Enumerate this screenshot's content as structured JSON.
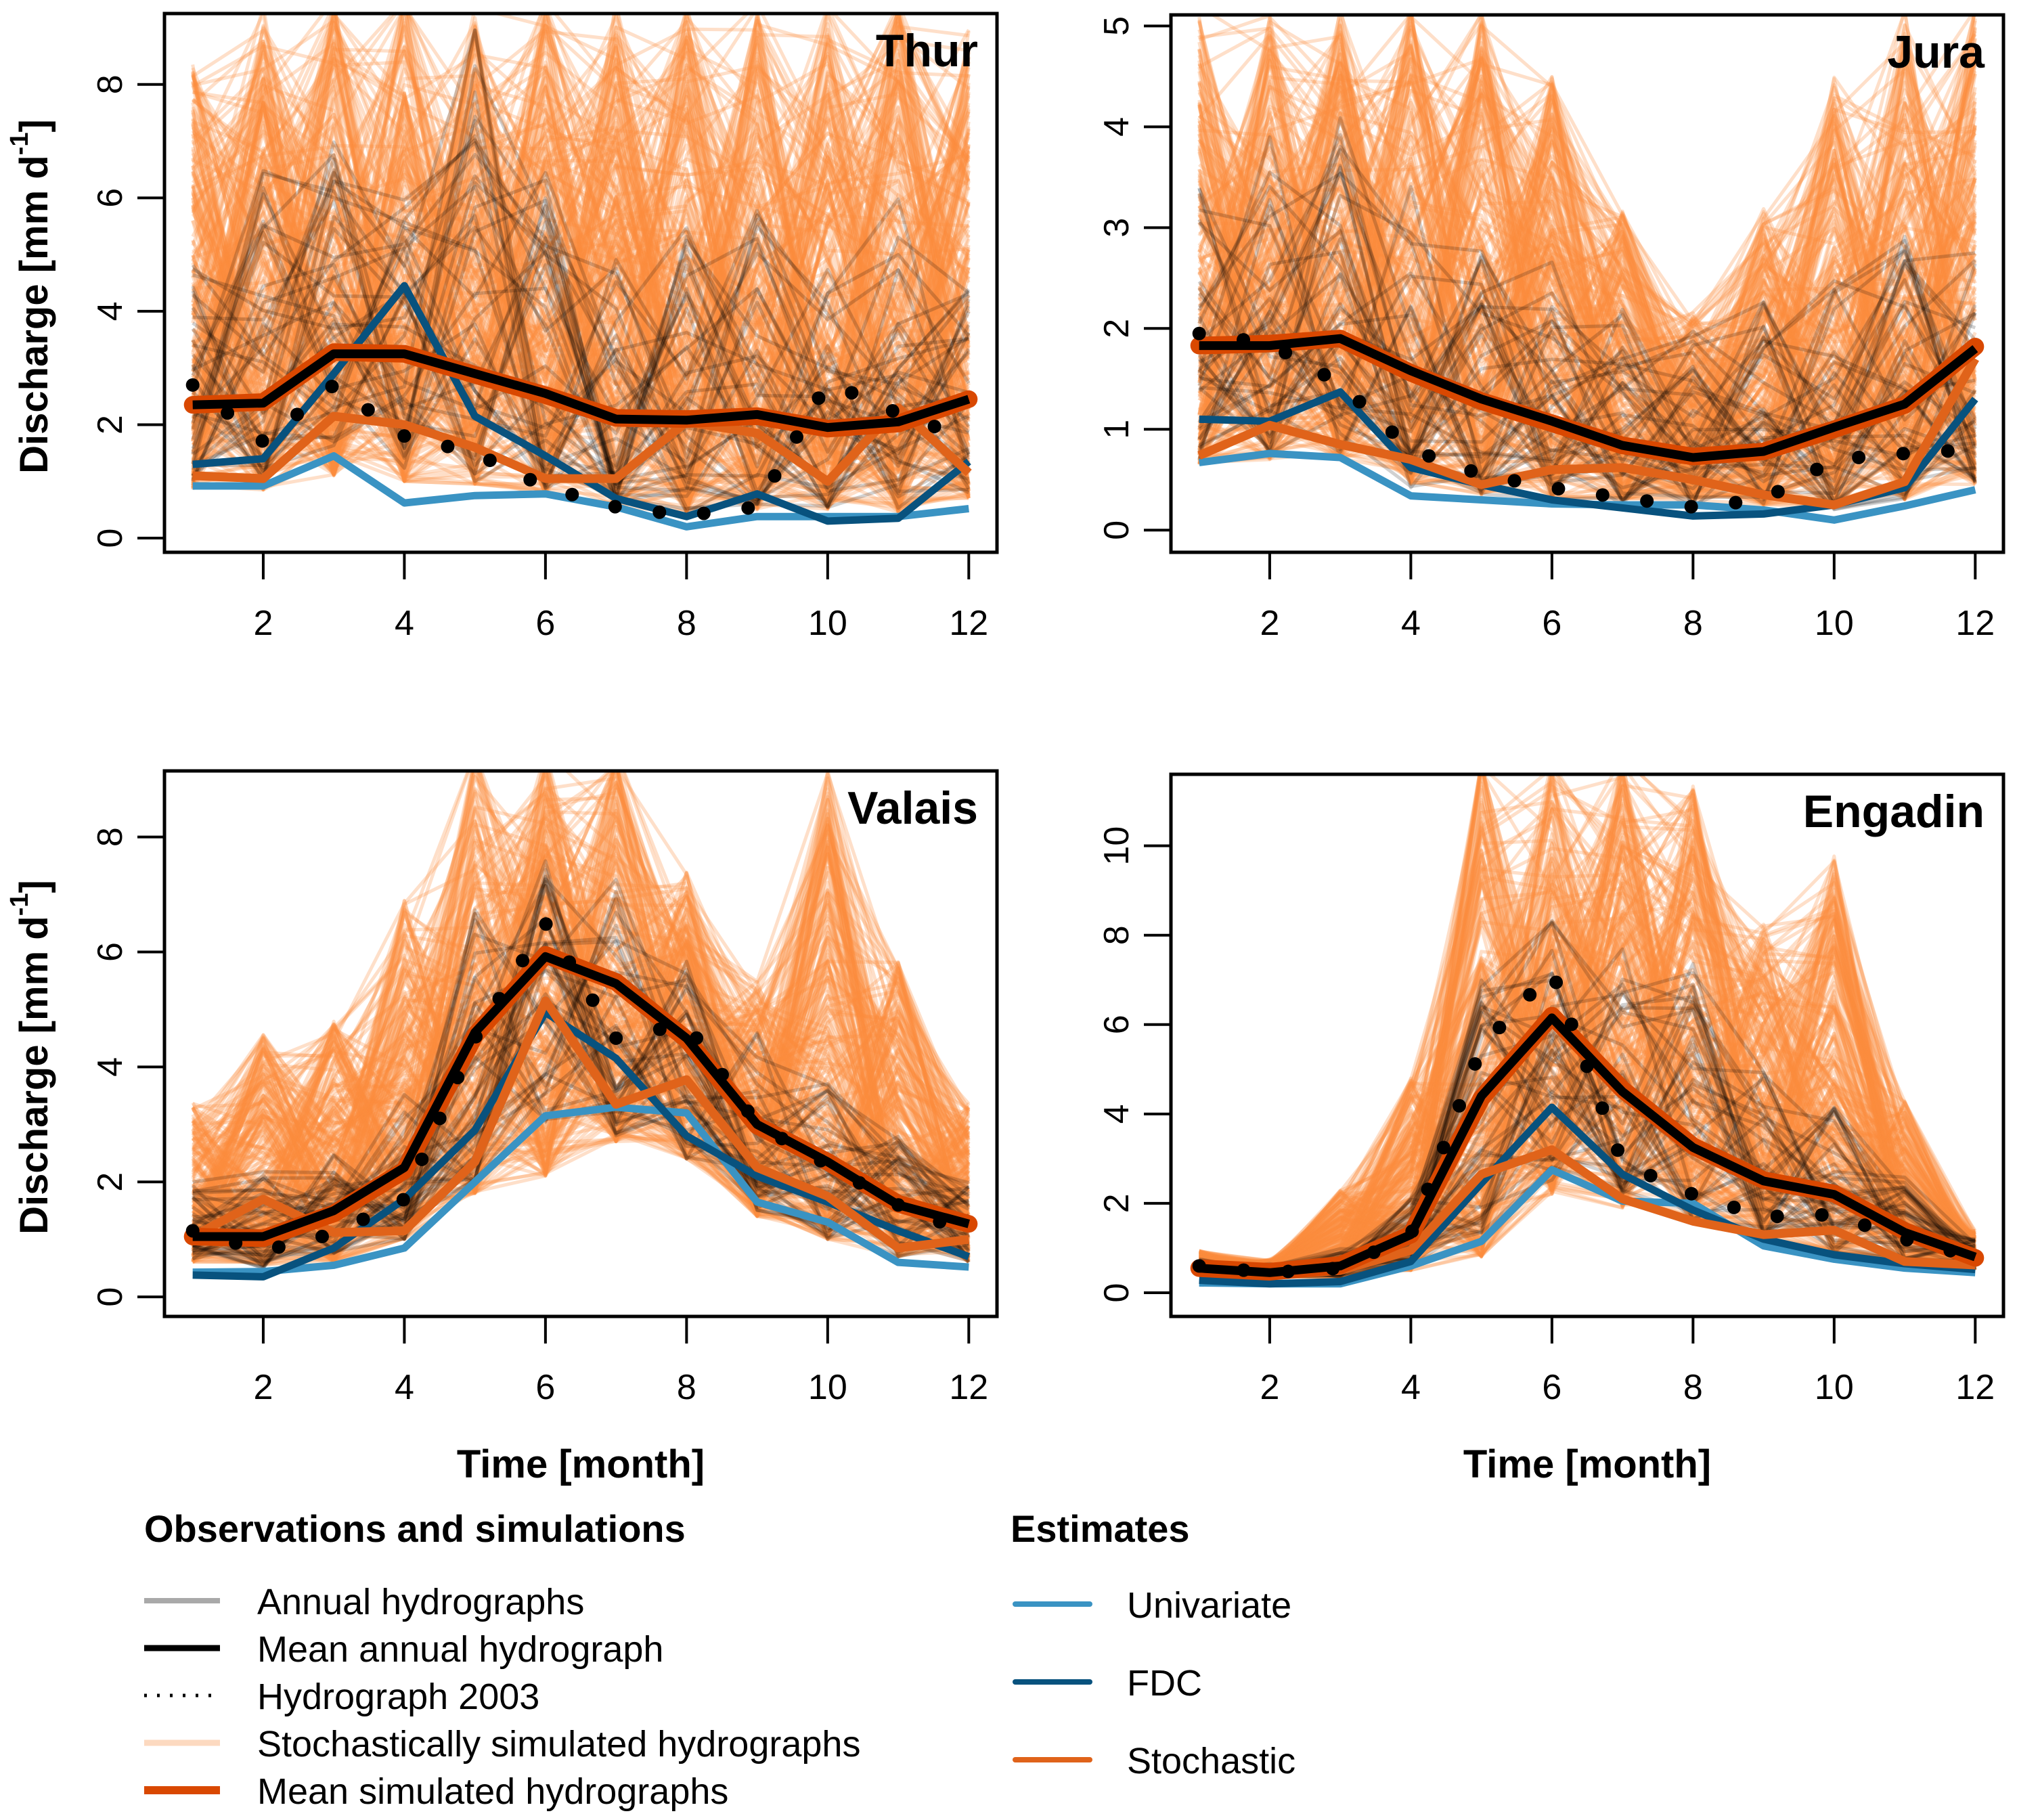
{
  "chart_data": [
    {
      "type": "line",
      "title": "Thur",
      "xlabel": "",
      "ylabel": "Discharge [mm d-1]",
      "x": [
        1,
        2,
        3,
        4,
        5,
        6,
        7,
        8,
        9,
        10,
        11,
        12
      ],
      "xlim": [
        0.6,
        12.4
      ],
      "ylim": [
        -0.25,
        9.25
      ],
      "xticks": [
        2,
        4,
        6,
        8,
        10,
        12
      ],
      "yticks": [
        0,
        2,
        4,
        6,
        8
      ],
      "grid": false,
      "ensemble": {
        "simulated_low": [
          0.85,
          0.85,
          1.1,
          1.0,
          0.95,
          0.75,
          0.55,
          0.45,
          0.5,
          0.5,
          0.45,
          0.7
        ],
        "simulated_high": [
          8.5,
          9.5,
          9.5,
          9.5,
          9.5,
          9.5,
          9.5,
          9.5,
          9.5,
          9.5,
          9.5,
          9.0
        ],
        "annual_low": [
          1.0,
          1.0,
          1.3,
          1.2,
          1.0,
          0.8,
          0.5,
          0.45,
          0.5,
          0.5,
          0.5,
          0.8
        ],
        "annual_high": [
          5.0,
          6.5,
          7.0,
          6.0,
          9.0,
          6.5,
          5.0,
          5.5,
          6.0,
          5.0,
          6.0,
          4.5
        ]
      },
      "series": [
        {
          "name": "Mean annual hydrograph",
          "values": [
            2.35,
            2.38,
            3.25,
            3.25,
            2.9,
            2.55,
            2.1,
            2.08,
            2.18,
            1.95,
            2.05,
            2.45
          ]
        },
        {
          "name": "Mean simulated hydrographs",
          "values": [
            2.35,
            2.4,
            3.28,
            3.25,
            2.88,
            2.52,
            2.12,
            2.1,
            2.15,
            1.93,
            2.02,
            2.45
          ]
        },
        {
          "name": "Hydrograph 2003",
          "values": [
            2.7,
            1.7,
            2.7,
            1.8,
            1.5,
            0.9,
            0.55,
            0.4,
            0.55,
            2.75,
            2.2,
            1.75
          ]
        },
        {
          "name": "Univariate",
          "values": [
            0.92,
            0.92,
            1.45,
            0.62,
            0.75,
            0.78,
            0.55,
            0.2,
            0.38,
            0.38,
            0.38,
            0.52
          ]
        },
        {
          "name": "FDC",
          "values": [
            1.3,
            1.4,
            2.9,
            4.45,
            2.15,
            1.45,
            0.7,
            0.38,
            0.78,
            0.3,
            0.35,
            1.35
          ]
        },
        {
          "name": "Stochastic",
          "values": [
            1.1,
            1.05,
            2.15,
            2.0,
            1.6,
            1.05,
            1.05,
            2.05,
            1.85,
            1.0,
            2.3,
            1.15
          ]
        }
      ]
    },
    {
      "type": "line",
      "title": "Jura",
      "xlabel": "",
      "ylabel": "",
      "x": [
        1,
        2,
        3,
        4,
        5,
        6,
        7,
        8,
        9,
        10,
        11,
        12
      ],
      "xlim": [
        0.6,
        12.4
      ],
      "ylim": [
        -0.22,
        5.11
      ],
      "xticks": [
        2,
        4,
        6,
        8,
        10,
        12
      ],
      "yticks": [
        0,
        1,
        2,
        3,
        4,
        5
      ],
      "grid": false,
      "ensemble": {
        "simulated_low": [
          0.65,
          0.7,
          0.7,
          0.45,
          0.35,
          0.3,
          0.3,
          0.3,
          0.25,
          0.22,
          0.3,
          0.45
        ],
        "simulated_high": [
          5.2,
          5.2,
          5.2,
          5.2,
          5.2,
          4.5,
          3.2,
          2.2,
          3.2,
          4.5,
          5.2,
          5.2
        ],
        "annual_low": [
          0.7,
          0.75,
          0.75,
          0.4,
          0.35,
          0.3,
          0.25,
          0.2,
          0.2,
          0.2,
          0.3,
          0.45
        ],
        "annual_high": [
          3.5,
          4.0,
          4.3,
          3.5,
          3.0,
          2.8,
          2.2,
          2.0,
          2.3,
          2.5,
          3.0,
          2.8
        ]
      },
      "series": [
        {
          "name": "Mean annual hydrograph",
          "values": [
            1.83,
            1.83,
            1.9,
            1.58,
            1.3,
            1.08,
            0.84,
            0.72,
            0.78,
            1.02,
            1.25,
            1.8
          ]
        },
        {
          "name": "Mean simulated hydrographs",
          "values": [
            1.83,
            1.85,
            1.9,
            1.56,
            1.28,
            1.06,
            0.84,
            0.73,
            0.78,
            1.0,
            1.24,
            1.82
          ]
        },
        {
          "name": "Hydrograph 2003",
          "values": [
            1.95,
            1.85,
            1.45,
            0.8,
            0.55,
            0.42,
            0.32,
            0.23,
            0.3,
            0.7,
            0.76,
            0.8
          ]
        },
        {
          "name": "Univariate",
          "values": [
            0.67,
            0.76,
            0.72,
            0.34,
            0.3,
            0.26,
            0.25,
            0.25,
            0.2,
            0.1,
            0.24,
            0.4
          ]
        },
        {
          "name": "FDC",
          "values": [
            1.1,
            1.08,
            1.37,
            0.62,
            0.45,
            0.3,
            0.22,
            0.14,
            0.16,
            0.25,
            0.42,
            1.3
          ]
        },
        {
          "name": "Stochastic",
          "values": [
            0.74,
            1.04,
            0.85,
            0.7,
            0.45,
            0.6,
            0.62,
            0.5,
            0.35,
            0.25,
            0.48,
            1.7
          ]
        }
      ]
    },
    {
      "type": "line",
      "title": "Valais",
      "xlabel": "Time [month]",
      "ylabel": "Discharge [mm d-1]",
      "x": [
        1,
        2,
        3,
        4,
        5,
        6,
        7,
        8,
        9,
        10,
        11,
        12
      ],
      "xlim": [
        0.6,
        12.4
      ],
      "ylim": [
        -0.34,
        9.15
      ],
      "xticks": [
        2,
        4,
        6,
        8,
        10,
        12
      ],
      "yticks": [
        0,
        2,
        4,
        6,
        8
      ],
      "grid": false,
      "ensemble": {
        "simulated_low": [
          0.6,
          0.55,
          0.6,
          1.0,
          1.8,
          2.1,
          2.7,
          2.4,
          1.4,
          1.0,
          0.7,
          0.6
        ],
        "simulated_high": [
          3.4,
          4.6,
          4.8,
          6.9,
          9.5,
          9.5,
          9.5,
          7.5,
          5.5,
          9.3,
          5.9,
          3.4
        ],
        "annual_low": [
          0.6,
          0.5,
          0.7,
          1.0,
          2.0,
          3.0,
          2.8,
          2.4,
          1.5,
          1.0,
          0.7,
          0.6
        ],
        "annual_high": [
          2.0,
          2.2,
          2.6,
          3.6,
          6.8,
          7.7,
          7.3,
          6.3,
          4.6,
          3.8,
          2.8,
          2.0
        ]
      },
      "series": [
        {
          "name": "Mean annual hydrograph",
          "values": [
            1.05,
            1.05,
            1.5,
            2.25,
            4.6,
            5.92,
            5.45,
            4.5,
            3.0,
            2.35,
            1.6,
            1.27
          ]
        },
        {
          "name": "Mean simulated hydrographs",
          "values": [
            1.05,
            1.02,
            1.45,
            2.2,
            4.55,
            5.95,
            5.48,
            4.48,
            2.98,
            2.35,
            1.62,
            1.27
          ]
        },
        {
          "name": "Hydrograph 2003",
          "values": [
            1.15,
            0.8,
            1.1,
            1.7,
            4.5,
            6.5,
            4.5,
            4.75,
            3.0,
            2.3,
            1.6,
            1.1
          ]
        },
        {
          "name": "Univariate",
          "values": [
            0.43,
            0.44,
            0.55,
            0.85,
            2.0,
            3.15,
            3.3,
            3.2,
            1.65,
            1.3,
            0.6,
            0.52
          ]
        },
        {
          "name": "FDC",
          "values": [
            0.38,
            0.35,
            0.85,
            1.7,
            2.9,
            4.95,
            4.15,
            2.8,
            2.1,
            1.65,
            1.15,
            0.7
          ]
        },
        {
          "name": "Stochastic",
          "values": [
            1.05,
            1.7,
            1.12,
            1.15,
            2.35,
            5.15,
            3.35,
            3.78,
            2.25,
            1.75,
            0.85,
            1.0
          ]
        }
      ]
    },
    {
      "type": "line",
      "title": "Engadin",
      "xlabel": "Time [month]",
      "ylabel": "",
      "x": [
        1,
        2,
        3,
        4,
        5,
        6,
        7,
        8,
        9,
        10,
        11,
        12
      ],
      "xlim": [
        0.6,
        12.4
      ],
      "ylim": [
        -0.53,
        11.6
      ],
      "xticks": [
        2,
        4,
        6,
        8,
        10,
        12
      ],
      "yticks": [
        0,
        2,
        4,
        6,
        8,
        10
      ],
      "grid": false,
      "ensemble": {
        "simulated_low": [
          0.4,
          0.35,
          0.35,
          0.5,
          0.8,
          2.2,
          1.9,
          1.6,
          1.2,
          0.9,
          0.65,
          0.5
        ],
        "simulated_high": [
          0.95,
          0.75,
          2.3,
          4.8,
          12.0,
          12.0,
          12.0,
          11.4,
          8.5,
          9.8,
          4.3,
          1.4
        ],
        "annual_low": [
          0.4,
          0.3,
          0.35,
          0.6,
          1.3,
          2.5,
          2.2,
          1.6,
          1.2,
          0.9,
          0.7,
          0.5
        ],
        "annual_high": [
          0.8,
          0.65,
          1.0,
          2.2,
          7.0,
          8.5,
          7.8,
          7.5,
          5.0,
          4.2,
          2.8,
          1.2
        ]
      },
      "series": [
        {
          "name": "Mean annual hydrograph",
          "values": [
            0.55,
            0.45,
            0.6,
            1.3,
            4.4,
            6.15,
            4.5,
            3.25,
            2.5,
            2.2,
            1.35,
            0.8
          ]
        },
        {
          "name": "Mean simulated hydrographs",
          "values": [
            0.55,
            0.47,
            0.62,
            1.3,
            4.35,
            6.2,
            4.55,
            3.28,
            2.52,
            2.22,
            1.38,
            0.78
          ]
        },
        {
          "name": "Hydrograph 2003",
          "values": [
            0.6,
            0.45,
            0.55,
            1.3,
            5.5,
            7.2,
            2.9,
            2.2,
            1.7,
            1.75,
            1.2,
            0.8
          ]
        },
        {
          "name": "Univariate",
          "values": [
            0.22,
            0.2,
            0.2,
            0.6,
            1.15,
            2.75,
            2.05,
            2.0,
            1.05,
            0.75,
            0.55,
            0.45
          ]
        },
        {
          "name": "FDC",
          "values": [
            0.28,
            0.2,
            0.25,
            0.7,
            2.45,
            4.15,
            2.65,
            1.85,
            1.2,
            0.85,
            0.65,
            0.52
          ]
        },
        {
          "name": "Stochastic",
          "values": [
            0.5,
            0.38,
            0.5,
            0.95,
            2.65,
            3.2,
            2.1,
            1.6,
            1.3,
            1.4,
            0.7,
            0.62
          ]
        }
      ]
    }
  ],
  "styles": {
    "Annual hydrographs": "#7f7f7f",
    "Mean annual hydrograph": "#000000",
    "Hydrograph 2003": "#000000",
    "Stochastically simulated hydrographs": "#fd8d3c",
    "Mean simulated hydrographs": "#d94801",
    "Univariate": "#3a93c3",
    "FDC": "#08527e",
    "Stochastic": "#e0631a"
  },
  "legend": {
    "observations": {
      "heading": "Observations and simulations",
      "items": [
        {
          "label": "Annual hydrographs",
          "key": "Annual hydrographs",
          "style": "solid-gray"
        },
        {
          "label": "Mean annual hydrograph",
          "key": "Mean annual hydrograph",
          "style": "solid-black"
        },
        {
          "label": "Hydrograph 2003",
          "key": "Hydrograph 2003",
          "style": "dotted"
        },
        {
          "label": "Stochastically simulated hydrographs",
          "key": "Stochastically simulated hydrographs",
          "style": "solid-light"
        },
        {
          "label": "Mean simulated hydrographs",
          "key": "Mean simulated hydrographs",
          "style": "solid-thick"
        }
      ]
    },
    "estimates": {
      "heading": "Estimates",
      "items": [
        {
          "label": "Univariate",
          "key": "Univariate",
          "style": "solid"
        },
        {
          "label": "FDC",
          "key": "FDC",
          "style": "solid"
        },
        {
          "label": "Stochastic",
          "key": "Stochastic",
          "style": "solid"
        }
      ]
    }
  },
  "labels": {
    "ylabel_main": "Discharge [mm d",
    "ylabel_sup": "-1",
    "ylabel_end": "]",
    "xlabel": "Time [month]"
  }
}
